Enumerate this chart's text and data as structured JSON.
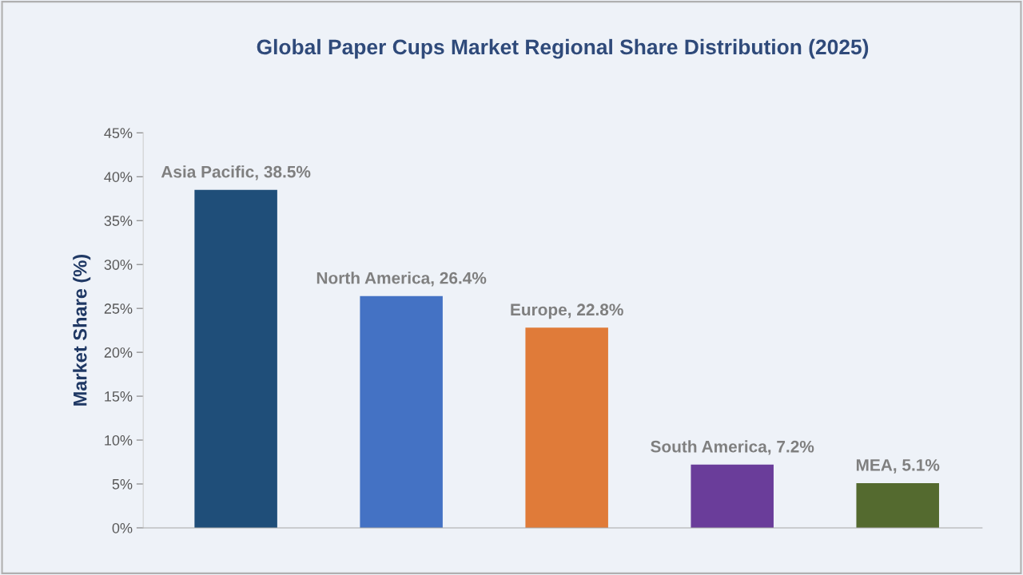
{
  "chart_data": {
    "type": "bar",
    "title": "Global Paper Cups Market Regional Share Distribution (2025)",
    "ylabel": "Market Share (%)",
    "categories": [
      null,
      null,
      null,
      null,
      null
    ],
    "values": [
      38.5,
      26.4,
      22.8,
      7.2,
      5.1
    ],
    "colors": [
      "#1f4e79",
      "#4472c4",
      "#e07b39",
      "#6a3d9a",
      "#546a2f"
    ],
    "value_labels": [
      "Asia Pacific, 38.5%",
      "North America, 26.4%",
      "Europe, 22.8%",
      "South America, 7.2%",
      "MEA, 5.1%"
    ],
    "ylim": [
      0,
      45
    ],
    "yticks": [
      {
        "value": 0,
        "label": "0%"
      },
      {
        "value": 5,
        "label": "5%"
      },
      {
        "value": 10,
        "label": "10%"
      },
      {
        "value": 15,
        "label": "15%"
      },
      {
        "value": 20,
        "label": "20%"
      },
      {
        "value": 25,
        "label": "25%"
      },
      {
        "value": 30,
        "label": "30%"
      },
      {
        "value": 35,
        "label": "35%"
      },
      {
        "value": 40,
        "label": "40%"
      },
      {
        "value": 45,
        "label": "45%"
      }
    ],
    "grid": false,
    "legend": false
  }
}
